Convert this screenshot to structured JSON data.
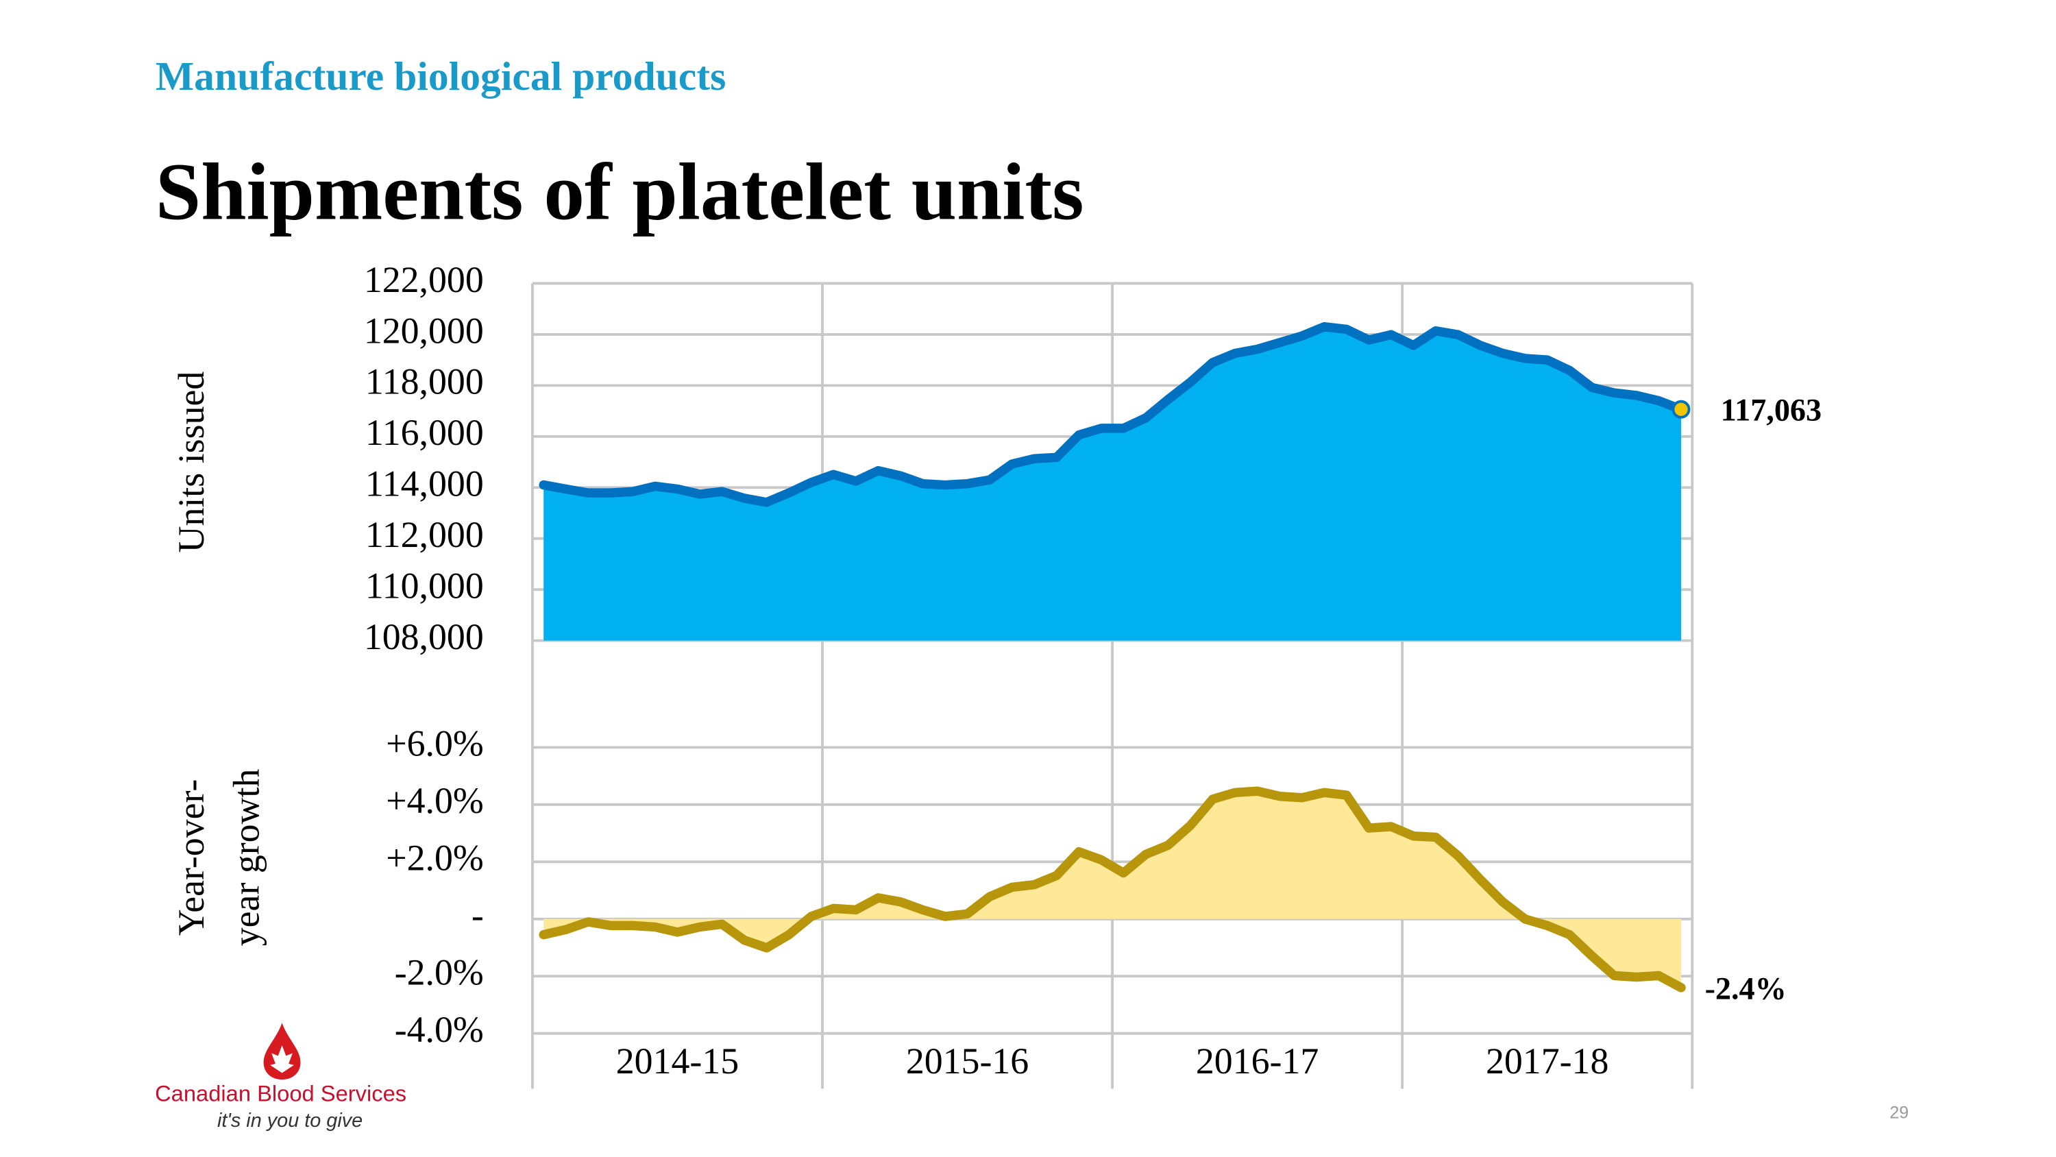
{
  "header": {
    "section": "Manufacture biological products",
    "title": "Shipments of platelet units"
  },
  "footer": {
    "brand": "Canadian Blood Services",
    "tagline": "it's in you to give",
    "page_number": "29"
  },
  "chart_data": [
    {
      "type": "area",
      "ylabel": [
        "Units issued"
      ],
      "color": "#0070c0",
      "fill": "#00b0f0",
      "grid": true,
      "ylim": [
        108000,
        122000
      ],
      "yticks": [
        {
          "value": 108000,
          "label": "108,000"
        },
        {
          "value": 110000,
          "label": "110,000"
        },
        {
          "value": 112000,
          "label": "112,000"
        },
        {
          "value": 114000,
          "label": "114,000"
        },
        {
          "value": 116000,
          "label": "116,000"
        },
        {
          "value": 118000,
          "label": "118,000"
        },
        {
          "value": 120000,
          "label": "120,000"
        },
        {
          "value": 122000,
          "label": "122,000"
        }
      ],
      "values": [
        114100,
        113940,
        113790,
        113790,
        113840,
        114050,
        113940,
        113740,
        113840,
        113580,
        113420,
        113790,
        114200,
        114510,
        114250,
        114660,
        114460,
        114150,
        114100,
        114150,
        114300,
        114920,
        115130,
        115180,
        116060,
        116320,
        116320,
        116730,
        117450,
        118130,
        118900,
        119260,
        119420,
        119680,
        119940,
        120300,
        120200,
        119780,
        119990,
        119570,
        120140,
        119990,
        119570,
        119260,
        119060,
        119000,
        118590,
        117920,
        117710,
        117610,
        117400,
        117063
      ],
      "last_value_label": "117,063",
      "marker_color": "#f2c500"
    },
    {
      "type": "area",
      "ylabel": [
        "Year-over-",
        "year growth"
      ],
      "color": "#b8960c",
      "fill": "#ffe999",
      "grid": true,
      "ylim": [
        -4,
        6
      ],
      "yticks": [
        {
          "value": -4,
          "label": "-4.0%"
        },
        {
          "value": -2,
          "label": "-2.0%"
        },
        {
          "value": 0,
          "label": "-"
        },
        {
          "value": 2,
          "label": "+2.0%"
        },
        {
          "value": 4,
          "label": "+4.0%"
        },
        {
          "value": 6,
          "label": "+6.0%"
        }
      ],
      "x_labels": [
        "2014-15",
        "2015-16",
        "2016-17",
        "2017-18"
      ],
      "values": [
        -0.55,
        -0.37,
        -0.1,
        -0.23,
        -0.23,
        -0.28,
        -0.46,
        -0.28,
        -0.18,
        -0.74,
        -1.01,
        -0.55,
        0.09,
        0.37,
        0.32,
        0.74,
        0.6,
        0.32,
        0.09,
        0.18,
        0.78,
        1.11,
        1.2,
        1.52,
        2.35,
        2.07,
        1.61,
        2.26,
        2.58,
        3.27,
        4.19,
        4.42,
        4.47,
        4.29,
        4.24,
        4.42,
        4.33,
        3.18,
        3.23,
        2.9,
        2.86,
        2.21,
        1.38,
        0.6,
        0,
        -0.23,
        -0.55,
        -1.29,
        -1.98,
        -2.03,
        -1.98,
        -2.4
      ],
      "last_value_label": "-2.4%"
    }
  ]
}
